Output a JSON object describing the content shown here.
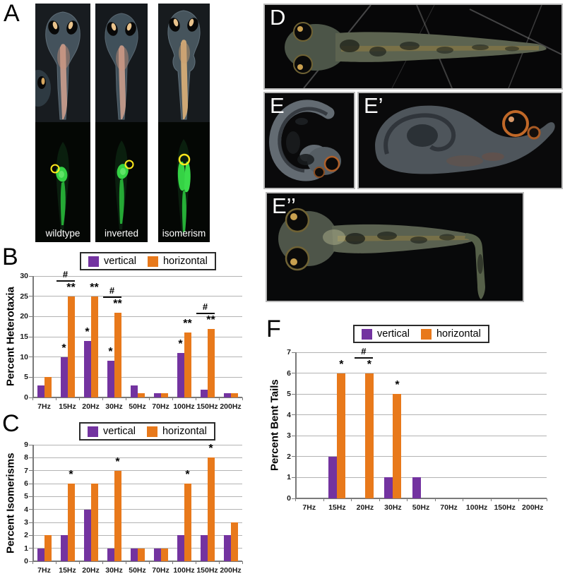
{
  "panels": {
    "A": {
      "label": "A",
      "columns": [
        {
          "label": "wildtype"
        },
        {
          "label": "inverted"
        },
        {
          "label": "isomerism"
        }
      ]
    },
    "D": {
      "label": "D"
    },
    "E": {
      "label": "E"
    },
    "E_prime": {
      "label": "E’"
    },
    "E_double_prime": {
      "label": "E’’"
    }
  },
  "series_colors": {
    "vertical": "#7333a0",
    "horizontal": "#e8791b"
  },
  "chart_data": [
    {
      "id": "B",
      "panel_label": "B",
      "type": "bar",
      "ylabel": "Percent Heterotaxia",
      "ylim": [
        0,
        30
      ],
      "ystep": 5,
      "grid": true,
      "legend_position": "top",
      "categories": [
        "7Hz",
        "15Hz",
        "20Hz",
        "30Hz",
        "50Hz",
        "70Hz",
        "100Hz",
        "150Hz",
        "200Hz"
      ],
      "series": [
        {
          "name": "vertical",
          "color": "#7333a0",
          "values": [
            3,
            10,
            14,
            9,
            3,
            1,
            11,
            2,
            1
          ]
        },
        {
          "name": "horizontal",
          "color": "#e8791b",
          "values": [
            5,
            25,
            25,
            21,
            1,
            1,
            16,
            17,
            1
          ]
        }
      ],
      "annotations": [
        {
          "category": "15Hz",
          "series": "vertical",
          "symbol": "*"
        },
        {
          "category": "15Hz",
          "series": "horizontal",
          "symbol": "**",
          "hash": "#"
        },
        {
          "category": "20Hz",
          "series": "vertical",
          "symbol": "*"
        },
        {
          "category": "20Hz",
          "series": "horizontal",
          "symbol": "**"
        },
        {
          "category": "30Hz",
          "series": "vertical",
          "symbol": "*"
        },
        {
          "category": "30Hz",
          "series": "horizontal",
          "symbol": "**",
          "hash": "#"
        },
        {
          "category": "100Hz",
          "series": "vertical",
          "symbol": "*"
        },
        {
          "category": "100Hz",
          "series": "horizontal",
          "symbol": "**"
        },
        {
          "category": "150Hz",
          "series": "horizontal",
          "symbol": "**",
          "hash": "#"
        }
      ]
    },
    {
      "id": "C",
      "panel_label": "C",
      "type": "bar",
      "ylabel": "Percent Isomerisms",
      "ylim": [
        0,
        9
      ],
      "ystep": 1,
      "grid": true,
      "legend_position": "top",
      "categories": [
        "7Hz",
        "15Hz",
        "20Hz",
        "30Hz",
        "50Hz",
        "70Hz",
        "100Hz",
        "150Hz",
        "200Hz"
      ],
      "series": [
        {
          "name": "vertical",
          "color": "#7333a0",
          "values": [
            1,
            2,
            4,
            1,
            1,
            1,
            2,
            2,
            2
          ]
        },
        {
          "name": "horizontal",
          "color": "#e8791b",
          "values": [
            2,
            6,
            6,
            7,
            1,
            1,
            6,
            8,
            3
          ]
        }
      ],
      "annotations": [
        {
          "category": "15Hz",
          "series": "horizontal",
          "symbol": "*"
        },
        {
          "category": "30Hz",
          "series": "horizontal",
          "symbol": "*"
        },
        {
          "category": "100Hz",
          "series": "horizontal",
          "symbol": "*"
        },
        {
          "category": "150Hz",
          "series": "horizontal",
          "symbol": "*"
        }
      ]
    },
    {
      "id": "F",
      "panel_label": "F",
      "type": "bar",
      "ylabel": "Percent Bent Tails",
      "ylim": [
        0,
        7
      ],
      "ystep": 1,
      "grid": true,
      "legend_position": "top",
      "categories": [
        "7Hz",
        "15Hz",
        "20Hz",
        "30Hz",
        "50Hz",
        "70Hz",
        "100Hz",
        "150Hz",
        "200Hz"
      ],
      "series": [
        {
          "name": "vertical",
          "color": "#7333a0",
          "values": [
            0,
            2,
            0,
            1,
            1,
            0,
            0,
            0,
            0
          ]
        },
        {
          "name": "horizontal",
          "color": "#e8791b",
          "values": [
            0,
            6,
            6,
            5,
            0,
            0,
            0,
            0,
            0
          ]
        }
      ],
      "annotations": [
        {
          "category": "15Hz",
          "series": "horizontal",
          "symbol": "*"
        },
        {
          "category": "20Hz",
          "series": "horizontal",
          "symbol": "*",
          "hash": "#"
        },
        {
          "category": "30Hz",
          "series": "horizontal",
          "symbol": "*"
        }
      ]
    }
  ]
}
